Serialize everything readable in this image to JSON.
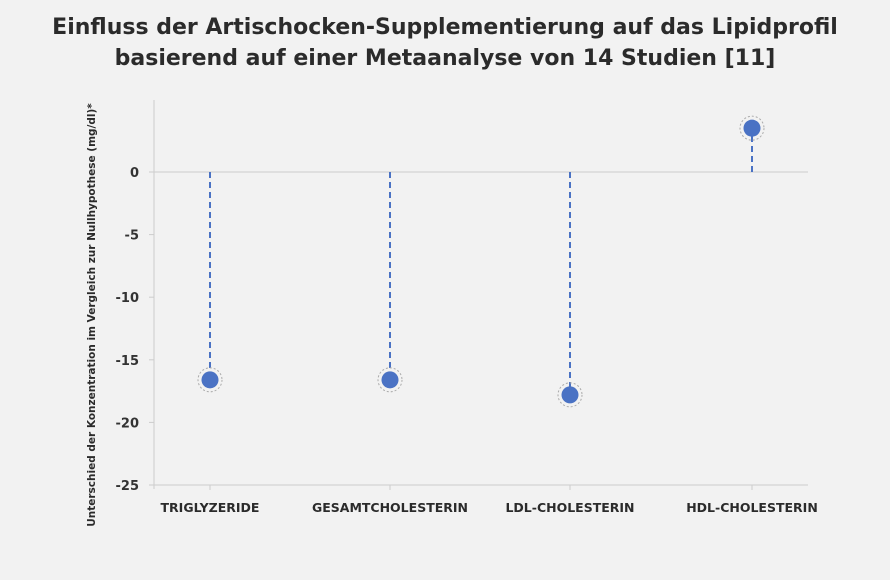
{
  "chart_data": {
    "type": "scatter",
    "title_lines": [
      "Einfluss der Artischocken-Supplementierung auf das Lipidprofil",
      "basierend auf einer Metaanalyse von 14 Studien [11]"
    ],
    "ylabel": "Unterschied der Konzentration im Vergleich zur Nullhypothese (mg/dl)*",
    "xlabel": "",
    "categories": [
      "TRIGLYZERIDE",
      "GESAMTCHOLESTERIN",
      "LDL-CHOLESTERIN",
      "HDL-CHOLESTERIN"
    ],
    "values": [
      -16.6,
      -16.6,
      -17.8,
      3.5
    ],
    "ylim": [
      -25,
      5
    ],
    "yticks": [
      0,
      -5,
      -10,
      -15,
      -20,
      -25
    ],
    "grid": false,
    "reference_line": 0,
    "colors": {
      "marker": "#4a72c4",
      "stem": "#4a72c4",
      "axis": "#cccccc",
      "halo": "#aaaaaa"
    }
  }
}
